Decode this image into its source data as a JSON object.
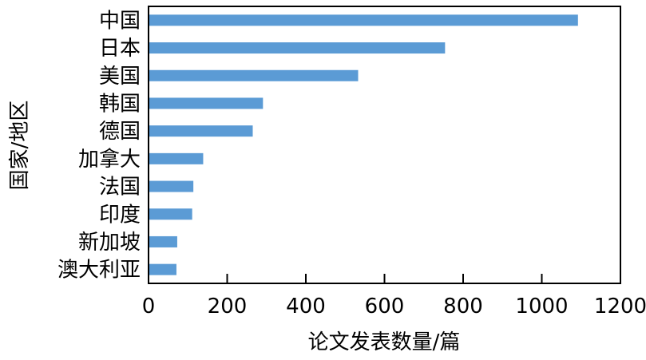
{
  "chart_data": {
    "type": "bar",
    "orientation": "horizontal",
    "categories": [
      "中国",
      "日本",
      "美国",
      "韩国",
      "德国",
      "加拿大",
      "法国",
      "印度",
      "新加坡",
      "澳大利亚"
    ],
    "values": [
      1092,
      754,
      533,
      291,
      265,
      139,
      114,
      111,
      73,
      71
    ],
    "xlabel": "论文发表数量/篇",
    "ylabel": "国家/地区",
    "xlim": [
      0,
      1200
    ],
    "xticks": [
      "0",
      "200",
      "400",
      "600",
      "800",
      "1000",
      "1200"
    ],
    "grid": false,
    "bar_color": "#5b9bd5"
  }
}
